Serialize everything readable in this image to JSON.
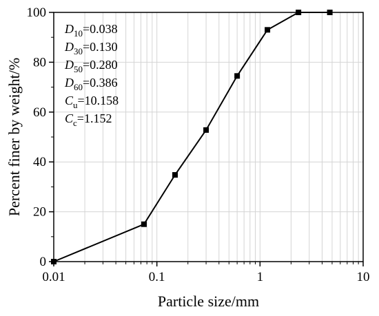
{
  "chart_data": {
    "type": "line",
    "xlabel": "Particle size/mm",
    "ylabel": "Percent finer by weight/%",
    "x_scale": "log",
    "xlim": [
      0.01,
      10
    ],
    "ylim": [
      0,
      100
    ],
    "grid": true,
    "x_ticks": [
      "0.01",
      "0.1",
      "1",
      "10"
    ],
    "y_ticks": [
      "0",
      "20",
      "40",
      "60",
      "80",
      "100"
    ],
    "series": [
      {
        "x": [
          0.01,
          0.075,
          0.15,
          0.3,
          0.6,
          1.18,
          2.36,
          4.75
        ],
        "y": [
          0,
          15,
          34.8,
          52.8,
          74.5,
          93,
          100,
          100
        ],
        "marker": "square",
        "color": "#000000"
      }
    ],
    "annotations": [
      {
        "symbol": "D",
        "sub": "10",
        "value": "=0.038"
      },
      {
        "symbol": "D",
        "sub": "30",
        "value": "=0.130"
      },
      {
        "symbol": "D",
        "sub": "50",
        "value": "=0.280"
      },
      {
        "symbol": "D",
        "sub": "60",
        "value": "=0.386"
      },
      {
        "symbol": "C",
        "sub": "u",
        "value": "=10.158"
      },
      {
        "symbol": "C",
        "sub": "c",
        "value": "=1.152"
      }
    ]
  }
}
